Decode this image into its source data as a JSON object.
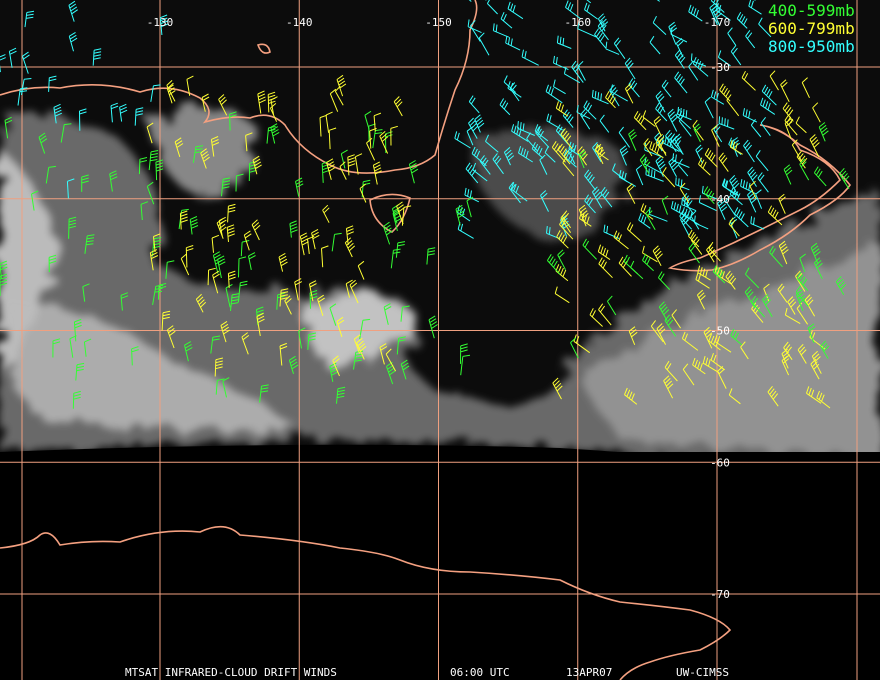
{
  "longitudes": [
    -130,
    -140,
    -150,
    -160,
    -170
  ],
  "latitudes": [
    -30,
    -40,
    -50,
    -60,
    -70
  ],
  "legend": [
    {
      "label": "400-599mb",
      "color": "#33ff33"
    },
    {
      "label": "600-799mb",
      "color": "#ffff33"
    },
    {
      "label": "800-950mb",
      "color": "#33ffff"
    }
  ],
  "footer": [
    "MTSAT INFRARED-CLOUD DRIFT WINDS",
    "06:00 UTC",
    "13APR07",
    "UW-CIMSS"
  ]
}
